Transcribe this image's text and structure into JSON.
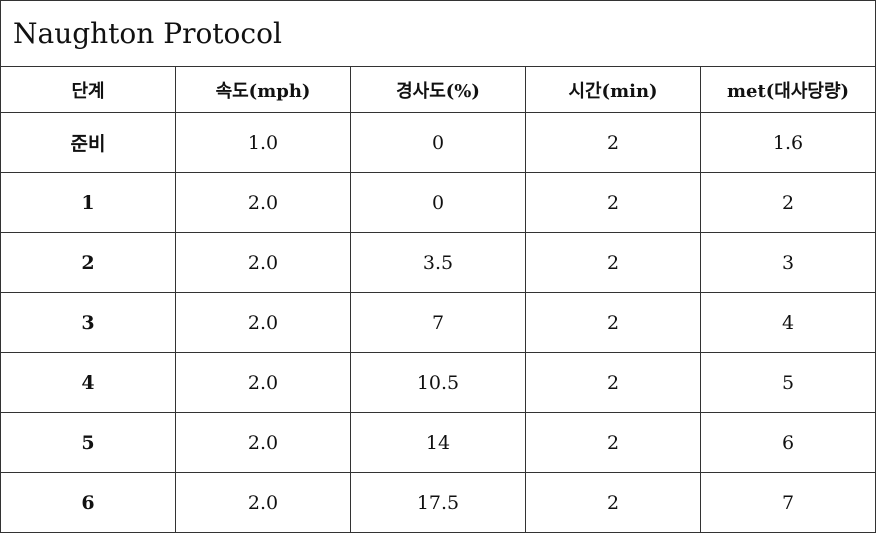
{
  "title": "Naughton Protocol",
  "columns": [
    "단계",
    "속도(mph)",
    "경사도(%)",
    "시간(min)",
    "met(대사당량)"
  ],
  "rows": [
    [
      "준비",
      "1.0",
      "0",
      "2",
      "1.6"
    ],
    [
      "1",
      "2.0",
      "0",
      "2",
      "2"
    ],
    [
      "2",
      "2.0",
      "3.5",
      "2",
      "3"
    ],
    [
      "3",
      "2.0",
      "7",
      "2",
      "4"
    ],
    [
      "4",
      "2.0",
      "10.5",
      "2",
      "5"
    ],
    [
      "5",
      "2.0",
      "14",
      "2",
      "6"
    ],
    [
      "6",
      "2.0",
      "17.5",
      "2",
      "7"
    ]
  ]
}
